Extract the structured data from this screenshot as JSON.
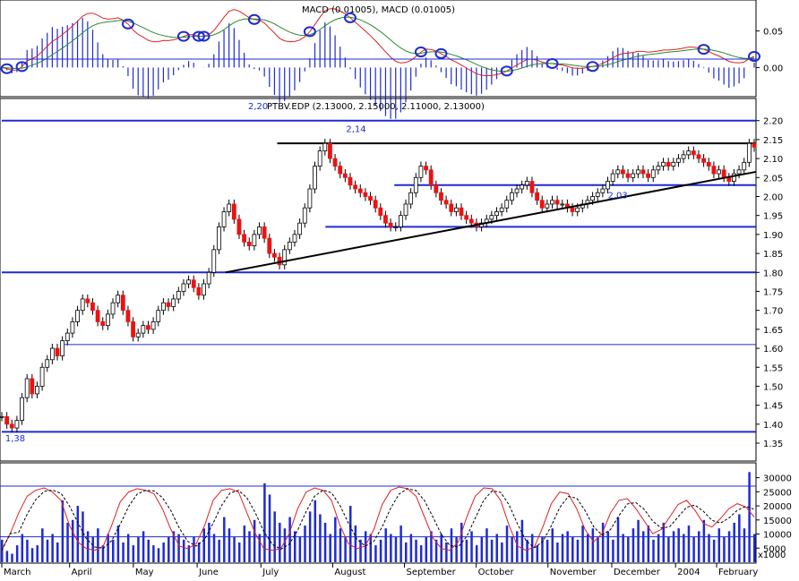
{
  "chart_data": {
    "type": "candlestick",
    "macd_panel": {
      "legend": "MACD (0.01005), MACD (0.01005)",
      "ylim": [
        -0.035,
        0.085
      ],
      "ticks": [
        "0.05",
        "0.00"
      ],
      "tick_values": [
        0.05,
        0.0
      ]
    },
    "price_panel": {
      "legend_prefix": "2,20",
      "legend": "PTBV.EDP (2.13000, 2.15000, 2.11000, 2.13000)",
      "ylim": [
        1.31,
        2.23
      ],
      "ticks": [
        "2.20",
        "2.15",
        "2.10",
        "2.05",
        "2.00",
        "1.95",
        "1.90",
        "1.85",
        "1.80",
        "1.75",
        "1.70",
        "1.65",
        "1.60",
        "1.55",
        "1.50",
        "1.45",
        "1.40",
        "1.35"
      ],
      "tick_values": [
        2.2,
        2.15,
        2.1,
        2.05,
        2.0,
        1.95,
        1.9,
        1.85,
        1.8,
        1.75,
        1.7,
        1.65,
        1.6,
        1.55,
        1.5,
        1.45,
        1.4,
        1.35
      ],
      "annotations": [
        {
          "text": "2,14",
          "x": 100,
          "y": 2.17
        },
        {
          "text": "2,03",
          "x": 176,
          "y": 1.995
        },
        {
          "text": "1,38",
          "x": 1,
          "y": 1.355
        }
      ],
      "hlines": [
        {
          "y": 2.2,
          "x0": 0,
          "x1": 219,
          "color": "#1f2bd1",
          "width": 2
        },
        {
          "y": 2.14,
          "x0": 80,
          "x1": 219,
          "color": "#000000",
          "width": 2
        },
        {
          "y": 2.03,
          "x0": 114,
          "x1": 219,
          "color": "#1f2bd1",
          "width": 2
        },
        {
          "y": 1.92,
          "x0": 94,
          "x1": 219,
          "color": "#1f2bd1",
          "width": 2
        },
        {
          "y": 1.8,
          "x0": 0,
          "x1": 219,
          "color": "#1f2bd1",
          "width": 2
        },
        {
          "y": 1.61,
          "x0": 17,
          "x1": 219,
          "color": "#1f2bd1",
          "width": 1
        },
        {
          "y": 1.38,
          "x0": 0,
          "x1": 219,
          "color": "#1f2bd1",
          "width": 2
        }
      ],
      "trendline": {
        "x0": 65,
        "y0": 1.8,
        "x1": 219,
        "y1": 2.065,
        "color": "#000000"
      },
      "closes": [
        1.42,
        1.4,
        1.39,
        1.41,
        1.47,
        1.52,
        1.48,
        1.5,
        1.55,
        1.57,
        1.6,
        1.58,
        1.62,
        1.64,
        1.67,
        1.7,
        1.73,
        1.72,
        1.7,
        1.67,
        1.66,
        1.69,
        1.72,
        1.74,
        1.7,
        1.67,
        1.63,
        1.64,
        1.66,
        1.65,
        1.67,
        1.7,
        1.72,
        1.71,
        1.73,
        1.75,
        1.77,
        1.78,
        1.76,
        1.74,
        1.77,
        1.8,
        1.86,
        1.92,
        1.96,
        1.98,
        1.94,
        1.9,
        1.88,
        1.87,
        1.9,
        1.92,
        1.89,
        1.85,
        1.84,
        1.82,
        1.86,
        1.88,
        1.9,
        1.93,
        1.97,
        2.02,
        2.08,
        2.12,
        2.14,
        2.1,
        2.08,
        2.06,
        2.05,
        2.03,
        2.02,
        2.01,
        2.0,
        1.99,
        1.97,
        1.95,
        1.93,
        1.92,
        1.92,
        1.95,
        1.98,
        2.01,
        2.05,
        2.08,
        2.07,
        2.03,
        2.01,
        1.99,
        1.98,
        1.96,
        1.97,
        1.95,
        1.94,
        1.93,
        1.92,
        1.93,
        1.94,
        1.95,
        1.96,
        1.97,
        1.99,
        2.01,
        2.02,
        2.03,
        2.04,
        2.01,
        1.99,
        1.97,
        1.98,
        1.99,
        1.98,
        1.98,
        1.97,
        1.96,
        1.97,
        1.98,
        1.99,
        2.0,
        2.01,
        2.02,
        2.04,
        2.06,
        2.07,
        2.06,
        2.05,
        2.06,
        2.07,
        2.06,
        2.05,
        2.07,
        2.08,
        2.09,
        2.08,
        2.09,
        2.1,
        2.11,
        2.12,
        2.11,
        2.1,
        2.09,
        2.08,
        2.06,
        2.07,
        2.05,
        2.04,
        2.06,
        2.07,
        2.09,
        2.14,
        2.13
      ]
    },
    "volume_panel": {
      "ylim": [
        0,
        34000
      ],
      "ticks": [
        "30000",
        "25000",
        "20000",
        "15000",
        "10000",
        "5000"
      ],
      "tick_values": [
        30000,
        25000,
        20000,
        15000,
        10000,
        5000
      ],
      "scale_label": "x1000",
      "hlines": [
        27000,
        9000
      ],
      "volumes": [
        8,
        4,
        3,
        6,
        10,
        8,
        5,
        6,
        12,
        8,
        10,
        7,
        22,
        14,
        15,
        20,
        18,
        11,
        9,
        12,
        6,
        10,
        8,
        13,
        7,
        10,
        6,
        9,
        11,
        8,
        6,
        5,
        7,
        9,
        11,
        10,
        8,
        6,
        9,
        7,
        12,
        14,
        10,
        8,
        16,
        12,
        9,
        7,
        13,
        11,
        15,
        10,
        28,
        24,
        18,
        14,
        12,
        16,
        11,
        9,
        13,
        18,
        22,
        17,
        14,
        10,
        16,
        12,
        9,
        20,
        13,
        8,
        11,
        10,
        6,
        8,
        12,
        10,
        9,
        13,
        7,
        10,
        8,
        6,
        9,
        11,
        8,
        10,
        7,
        12,
        9,
        14,
        8,
        11,
        6,
        9,
        12,
        8,
        10,
        7,
        13,
        9,
        11,
        15,
        8,
        10,
        6,
        9,
        8,
        12,
        7,
        10,
        11,
        9,
        8,
        13,
        10,
        12,
        9,
        14,
        11,
        8,
        16,
        10,
        9,
        12,
        15,
        11,
        13,
        8,
        10,
        14,
        9,
        11,
        12,
        10,
        13,
        9,
        11,
        15,
        10,
        8,
        12,
        9,
        11,
        14,
        17,
        12,
        32,
        10
      ],
      "stoch_fast": [
        10,
        30,
        55,
        75,
        82,
        85,
        80,
        70,
        40,
        20,
        12,
        10,
        15,
        40,
        68,
        80,
        84,
        82,
        78,
        60,
        35,
        15,
        12,
        18,
        40,
        70,
        82,
        84,
        80,
        55,
        30,
        12,
        10,
        12,
        30,
        60,
        80,
        85,
        82,
        70,
        40,
        18,
        12,
        15,
        35,
        65,
        82,
        86,
        84,
        75,
        50,
        25,
        12,
        10,
        20,
        50,
        75,
        85,
        84,
        70,
        40,
        15,
        10,
        14,
        38,
        66,
        80,
        78,
        60,
        35,
        20,
        30,
        55,
        70,
        72,
        60,
        45,
        30,
        35,
        50,
        65,
        70,
        58,
        42,
        38,
        48,
        60,
        66,
        62,
        50
      ],
      "x_labels": [
        "March",
        "April",
        "May",
        "June",
        "July",
        "August",
        "September",
        "October",
        "November",
        "December",
        "2004",
        "February"
      ],
      "x_label_pos": [
        0,
        17,
        33,
        49,
        65,
        83,
        101,
        119,
        137,
        153,
        169,
        186
      ]
    },
    "x_count": 150
  }
}
